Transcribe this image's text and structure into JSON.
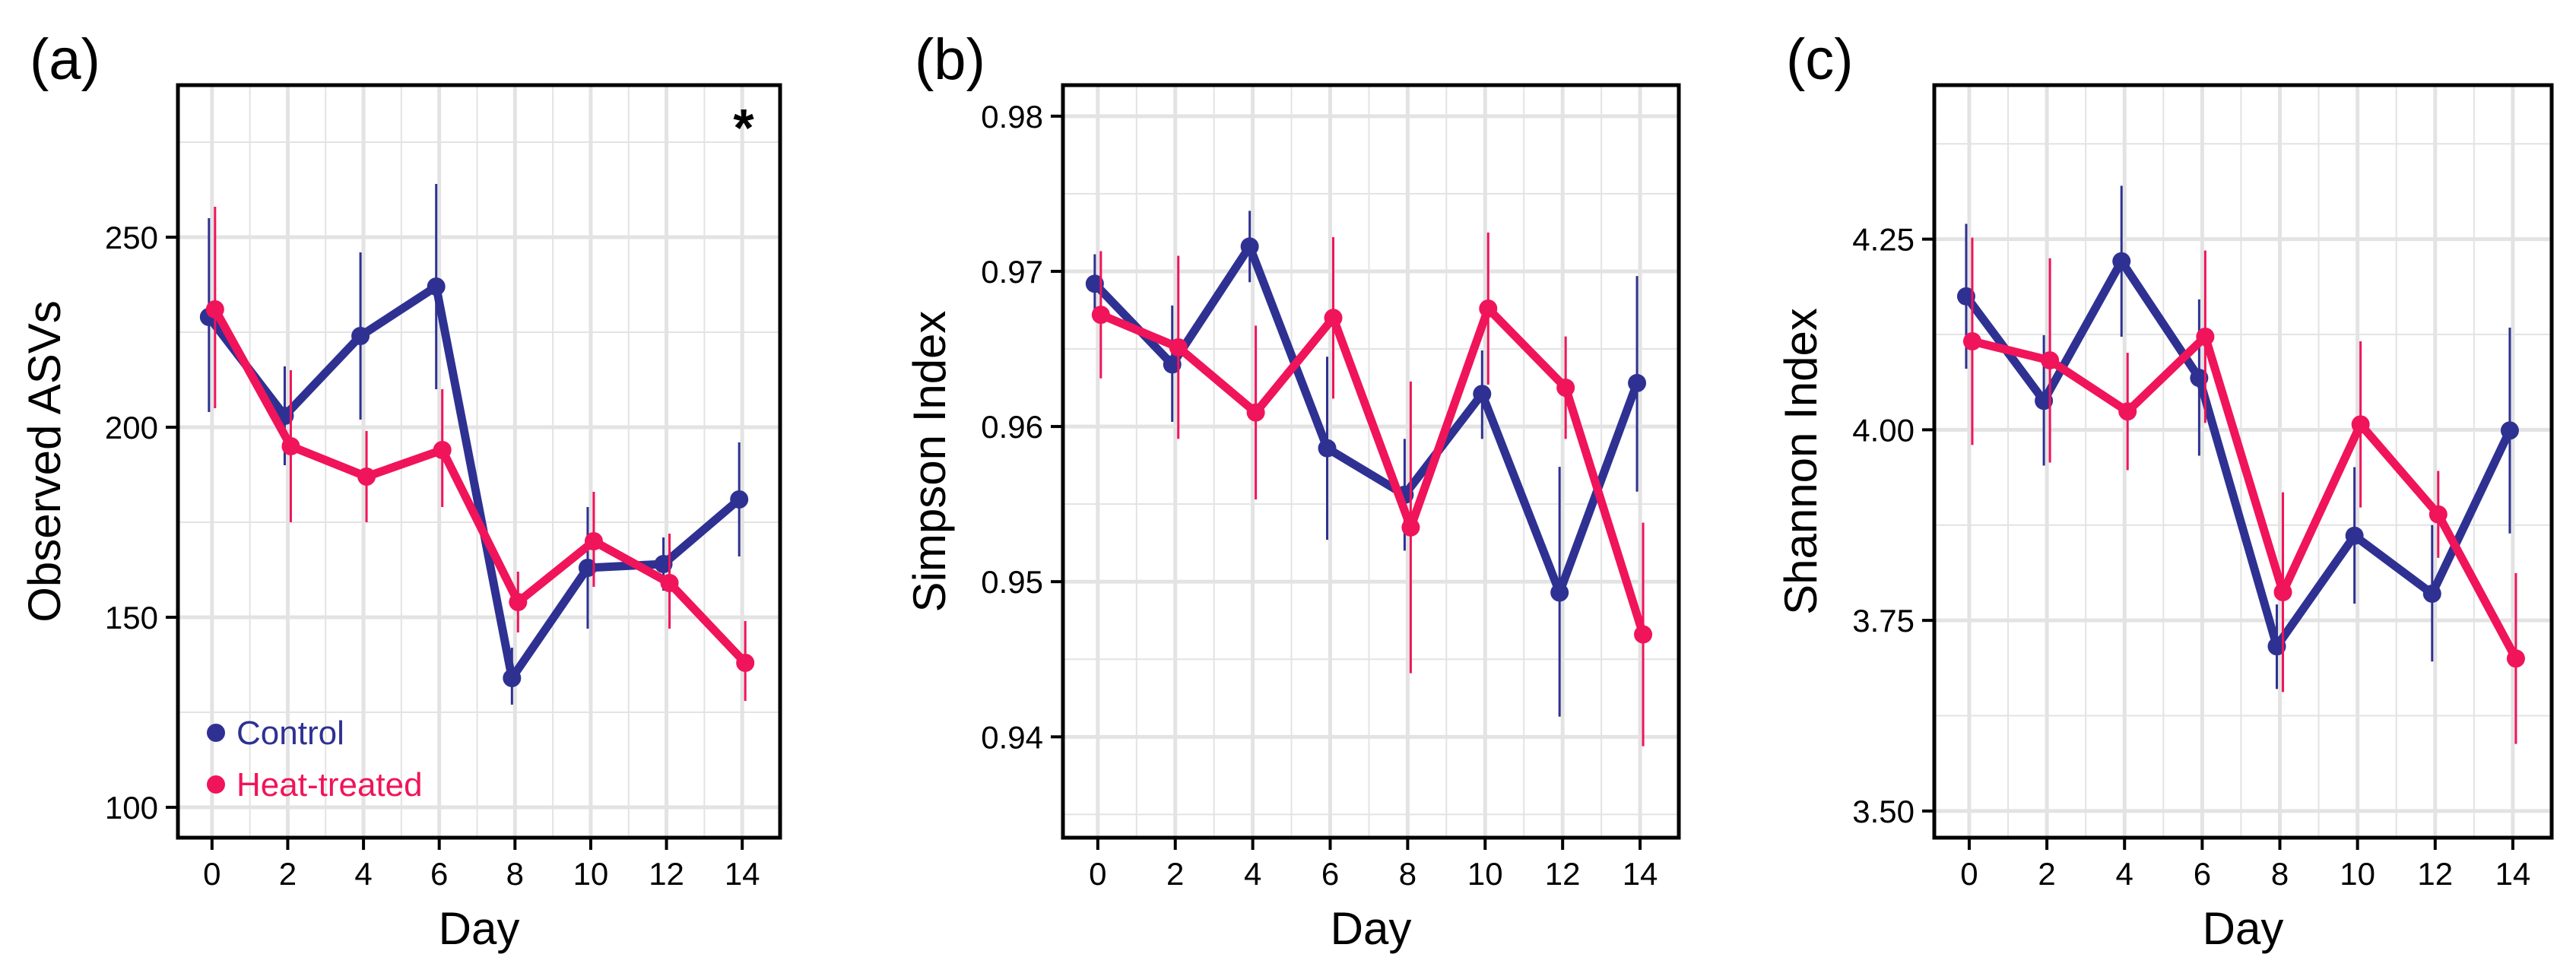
{
  "colors": {
    "control": "#2e3192",
    "heat": "#f0145a",
    "grid": "#e3e3e3",
    "frame": "#000000"
  },
  "chart_data": [
    {
      "type": "line",
      "panel_label": "(a)",
      "xlabel": "Day",
      "ylabel": "Observed ASVs",
      "xlim": [
        -0.9,
        15.0
      ],
      "ylim": [
        92,
        290
      ],
      "xticks": [
        0,
        2,
        4,
        6,
        8,
        10,
        12,
        14
      ],
      "yticks": [
        100,
        150,
        200,
        250
      ],
      "ytick_labels": [
        "100",
        "150",
        "200",
        "250"
      ],
      "annotation": "*",
      "legend": {
        "position": "bottom-left",
        "entries": [
          "Control",
          "Heat-treated"
        ]
      },
      "series": [
        {
          "name": "Control",
          "x": [
            0,
            2,
            4,
            6,
            8,
            10,
            12,
            14
          ],
          "y": [
            229,
            203,
            224,
            237,
            134,
            163,
            164,
            181
          ],
          "err_low": [
            204,
            190,
            202,
            210,
            127,
            147,
            157,
            166
          ],
          "err_high": [
            255,
            216,
            246,
            264,
            142,
            179,
            171,
            196
          ]
        },
        {
          "name": "Heat-treated",
          "x": [
            0,
            2,
            4,
            6,
            8,
            10,
            12,
            14
          ],
          "y": [
            231,
            195,
            187,
            194,
            154,
            170,
            159,
            138
          ],
          "err_low": [
            205,
            175,
            175,
            179,
            146,
            158,
            147,
            128
          ],
          "err_high": [
            258,
            215,
            199,
            210,
            162,
            183,
            172,
            149
          ]
        }
      ]
    },
    {
      "type": "line",
      "panel_label": "(b)",
      "xlabel": "Day",
      "ylabel": "Simpson Index",
      "xlim": [
        -0.9,
        15.0
      ],
      "ylim": [
        0.9335,
        0.982
      ],
      "xticks": [
        0,
        2,
        4,
        6,
        8,
        10,
        12,
        14
      ],
      "yticks": [
        0.94,
        0.95,
        0.96,
        0.97,
        0.98
      ],
      "ytick_labels": [
        "0.94",
        "0.95",
        "0.96",
        "0.97",
        "0.98"
      ],
      "series": [
        {
          "name": "Control",
          "x": [
            0,
            2,
            4,
            6,
            8,
            10,
            12,
            14
          ],
          "y": [
            0.9692,
            0.964,
            0.9716,
            0.9586,
            0.9556,
            0.9621,
            0.9493,
            0.9628
          ],
          "err_low": [
            0.9672,
            0.9603,
            0.9693,
            0.9527,
            0.952,
            0.9592,
            0.9413,
            0.9558
          ],
          "err_high": [
            0.9711,
            0.9678,
            0.9739,
            0.9645,
            0.9592,
            0.9649,
            0.9574,
            0.9697
          ]
        },
        {
          "name": "Heat-treated",
          "x": [
            0,
            2,
            4,
            6,
            8,
            10,
            12,
            14
          ],
          "y": [
            0.9672,
            0.9651,
            0.9609,
            0.967,
            0.9535,
            0.9676,
            0.9625,
            0.9466
          ],
          "err_low": [
            0.9631,
            0.9592,
            0.9553,
            0.9618,
            0.9441,
            0.9627,
            0.9592,
            0.9394
          ],
          "err_high": [
            0.9713,
            0.971,
            0.9665,
            0.9722,
            0.9629,
            0.9725,
            0.9658,
            0.9538
          ]
        }
      ]
    },
    {
      "type": "line",
      "panel_label": "(c)",
      "xlabel": "Day",
      "ylabel": "Shannon Index",
      "xlim": [
        -0.9,
        15.0
      ],
      "ylim": [
        3.465,
        4.452
      ],
      "xticks": [
        0,
        2,
        4,
        6,
        8,
        10,
        12,
        14
      ],
      "yticks": [
        3.5,
        3.75,
        4.0,
        4.25
      ],
      "ytick_labels": [
        "3.50",
        "3.75",
        "4.00",
        "4.25"
      ],
      "series": [
        {
          "name": "Control",
          "x": [
            0,
            2,
            4,
            6,
            8,
            10,
            12,
            14
          ],
          "y": [
            4.175,
            4.038,
            4.221,
            4.068,
            3.716,
            3.861,
            3.785,
            3.999
          ],
          "err_low": [
            4.08,
            3.953,
            4.122,
            3.966,
            3.66,
            3.772,
            3.696,
            3.864
          ],
          "err_high": [
            4.27,
            4.124,
            4.32,
            4.171,
            3.771,
            3.951,
            3.875,
            4.134
          ]
        },
        {
          "name": "Heat-treated",
          "x": [
            0,
            2,
            4,
            6,
            8,
            10,
            12,
            14
          ],
          "y": [
            4.116,
            4.091,
            4.024,
            4.122,
            3.787,
            4.007,
            3.889,
            3.7
          ],
          "err_low": [
            3.98,
            3.957,
            3.947,
            4.009,
            3.656,
            3.898,
            3.832,
            3.588
          ],
          "err_high": [
            4.252,
            4.225,
            4.101,
            4.235,
            3.918,
            4.116,
            3.946,
            3.812
          ]
        }
      ]
    }
  ]
}
